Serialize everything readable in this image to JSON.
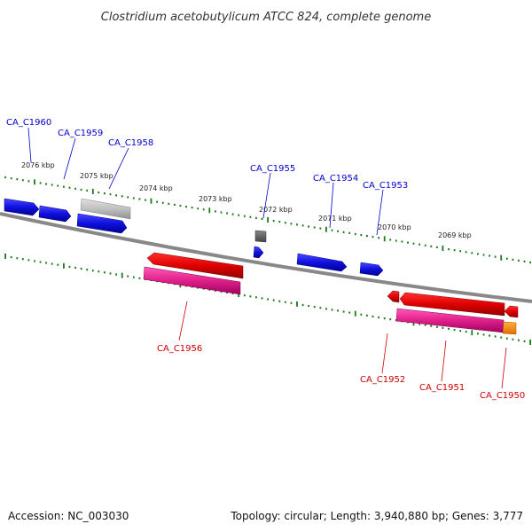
{
  "title": "Clostridium acetobutylicum ATCC 824, complete genome",
  "footer": {
    "accession": "Accession: NC_003030",
    "topology": "Topology: circular; Length: 3,940,880 bp; Genes: 3,777"
  },
  "colors": {
    "forward_gene": "#1010e0",
    "reverse_gene": "#e00000",
    "reverse_rna": "#e0208a",
    "pseudo_gene": "#c8c8c8",
    "other_gene": "#666666",
    "orange_feature": "#ff9500",
    "tick": "#1a7a1a",
    "backbone": "#888888",
    "forward_label": "#0000cc",
    "reverse_label": "#cc0000"
  },
  "scale_labels": [
    {
      "text": "2076 kbp"
    },
    {
      "text": "2075 kbp"
    },
    {
      "text": "2074 kbp"
    },
    {
      "text": "2073 kbp"
    },
    {
      "text": "2072 kbp"
    },
    {
      "text": "2071 kbp"
    },
    {
      "text": "2070 kbp"
    },
    {
      "text": "2069 kbp"
    }
  ],
  "forward_labels": [
    {
      "text": "CA_C1960"
    },
    {
      "text": "CA_C1959"
    },
    {
      "text": "CA_C1958"
    },
    {
      "text": "CA_C1955"
    },
    {
      "text": "CA_C1954"
    },
    {
      "text": "CA_C1953"
    }
  ],
  "reverse_labels": [
    {
      "text": "CA_C1956"
    },
    {
      "text": "CA_C1952"
    },
    {
      "text": "CA_C1951"
    },
    {
      "text": "CA_C1950"
    }
  ]
}
